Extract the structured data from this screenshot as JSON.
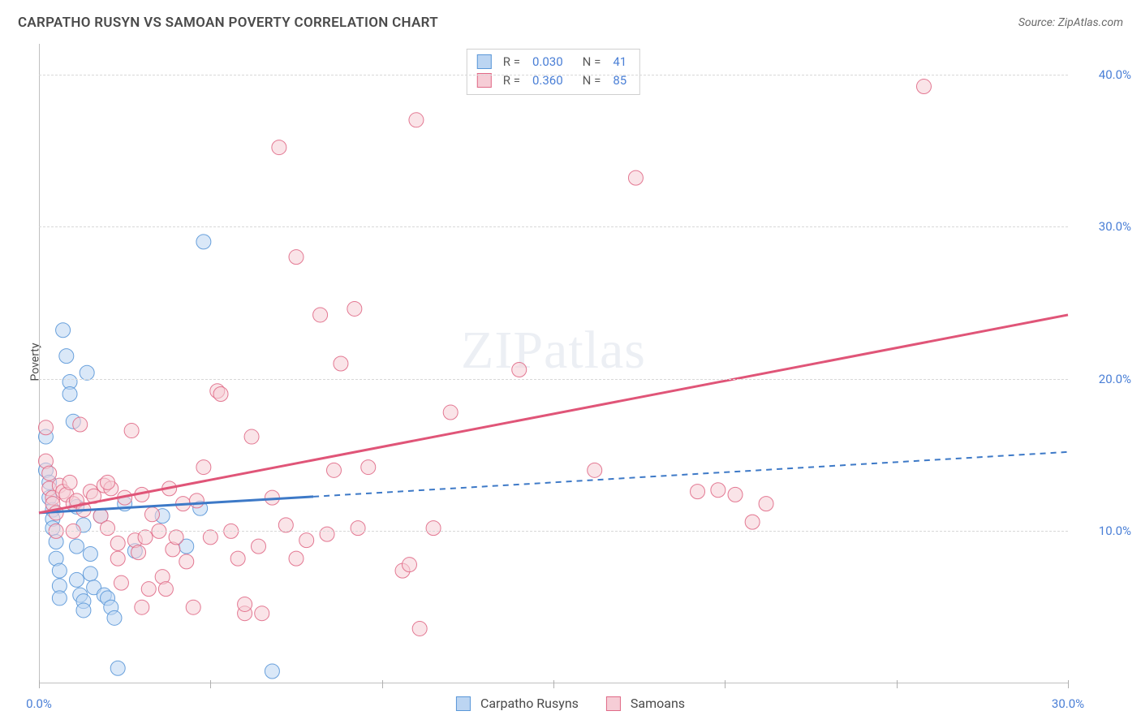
{
  "title": "CARPATHO RUSYN VS SAMOAN POVERTY CORRELATION CHART",
  "source": "Source: ZipAtlas.com",
  "watermark": "ZIPatlas",
  "y_axis_label": "Poverty",
  "chart": {
    "type": "scatter",
    "xlim": [
      0,
      30
    ],
    "ylim": [
      0,
      42
    ],
    "x_ticks": [
      0,
      5,
      10,
      15,
      20,
      25,
      30
    ],
    "x_tick_labels": {
      "0": "0.0%",
      "30": "30.0%"
    },
    "y_ticks": [
      10,
      20,
      30,
      40
    ],
    "y_tick_labels": {
      "10": "10.0%",
      "20": "20.0%",
      "30": "30.0%",
      "40": "40.0%"
    },
    "background_color": "#ffffff",
    "grid_color": "#d8d8d8",
    "axis_color": "#c0c0c0",
    "tick_label_color": "#4a7fd6",
    "marker_radius": 9,
    "marker_opacity": 0.55,
    "marker_stroke_opacity": 0.9,
    "line_width": 3,
    "series": [
      {
        "key": "carpatho",
        "label": "Carpatho Rusyns",
        "color_fill": "#bcd5f2",
        "color_stroke": "#5a97d8",
        "line_color": "#3d79c7",
        "R": "0.030",
        "N": "41",
        "trend": {
          "x1": 0,
          "y1": 11.2,
          "x2": 30,
          "y2": 15.2,
          "solid_until_x": 8
        },
        "points": [
          [
            0.2,
            16.2
          ],
          [
            0.2,
            14.0
          ],
          [
            0.3,
            13.2
          ],
          [
            0.3,
            12.2
          ],
          [
            0.4,
            11.4
          ],
          [
            0.4,
            10.8
          ],
          [
            0.4,
            10.2
          ],
          [
            0.5,
            9.3
          ],
          [
            0.5,
            8.2
          ],
          [
            0.6,
            7.4
          ],
          [
            0.6,
            6.4
          ],
          [
            0.6,
            5.6
          ],
          [
            0.7,
            23.2
          ],
          [
            0.8,
            21.5
          ],
          [
            0.9,
            19.8
          ],
          [
            0.9,
            19.0
          ],
          [
            1.0,
            17.2
          ],
          [
            1.1,
            11.6
          ],
          [
            1.1,
            9.0
          ],
          [
            1.1,
            6.8
          ],
          [
            1.2,
            5.8
          ],
          [
            1.3,
            5.4
          ],
          [
            1.3,
            4.8
          ],
          [
            1.3,
            10.4
          ],
          [
            1.4,
            20.4
          ],
          [
            1.5,
            8.5
          ],
          [
            1.5,
            7.2
          ],
          [
            1.6,
            6.3
          ],
          [
            1.8,
            11.0
          ],
          [
            1.9,
            5.8
          ],
          [
            2.0,
            5.6
          ],
          [
            2.1,
            5.0
          ],
          [
            2.2,
            4.3
          ],
          [
            2.3,
            1.0
          ],
          [
            2.5,
            11.8
          ],
          [
            3.6,
            11.0
          ],
          [
            4.3,
            9.0
          ],
          [
            4.7,
            11.5
          ],
          [
            4.8,
            29.0
          ],
          [
            6.8,
            0.8
          ],
          [
            2.8,
            8.7
          ]
        ]
      },
      {
        "key": "samoan",
        "label": "Samoans",
        "color_fill": "#f6cdd6",
        "color_stroke": "#e06a87",
        "line_color": "#e05578",
        "R": "0.360",
        "N": "85",
        "trend": {
          "x1": 0,
          "y1": 11.2,
          "x2": 30,
          "y2": 24.2,
          "solid_until_x": 30
        },
        "points": [
          [
            0.2,
            16.8
          ],
          [
            0.2,
            14.6
          ],
          [
            0.3,
            13.8
          ],
          [
            0.3,
            12.8
          ],
          [
            0.4,
            12.2
          ],
          [
            0.4,
            11.8
          ],
          [
            0.5,
            11.2
          ],
          [
            0.6,
            13.0
          ],
          [
            0.7,
            12.6
          ],
          [
            0.8,
            12.4
          ],
          [
            0.9,
            13.2
          ],
          [
            1.0,
            11.8
          ],
          [
            1.1,
            12.0
          ],
          [
            1.2,
            17.0
          ],
          [
            1.3,
            11.4
          ],
          [
            1.5,
            12.6
          ],
          [
            1.6,
            12.3
          ],
          [
            1.8,
            11.0
          ],
          [
            1.9,
            13.0
          ],
          [
            2.0,
            10.2
          ],
          [
            2.1,
            12.8
          ],
          [
            2.3,
            9.2
          ],
          [
            2.3,
            8.2
          ],
          [
            2.4,
            6.6
          ],
          [
            2.5,
            12.2
          ],
          [
            2.7,
            16.6
          ],
          [
            2.8,
            9.4
          ],
          [
            2.9,
            8.6
          ],
          [
            3.0,
            12.4
          ],
          [
            3.1,
            9.6
          ],
          [
            3.2,
            6.2
          ],
          [
            3.3,
            11.1
          ],
          [
            3.5,
            10.0
          ],
          [
            3.6,
            7.0
          ],
          [
            3.7,
            6.2
          ],
          [
            3.8,
            12.8
          ],
          [
            3.9,
            8.8
          ],
          [
            4.0,
            9.6
          ],
          [
            4.2,
            11.8
          ],
          [
            4.3,
            8.0
          ],
          [
            4.6,
            12.0
          ],
          [
            4.8,
            14.2
          ],
          [
            5.0,
            9.6
          ],
          [
            5.2,
            19.2
          ],
          [
            5.3,
            19.0
          ],
          [
            5.6,
            10.0
          ],
          [
            5.8,
            8.2
          ],
          [
            6.0,
            4.6
          ],
          [
            6.2,
            16.2
          ],
          [
            6.4,
            9.0
          ],
          [
            6.5,
            4.6
          ],
          [
            6.8,
            12.2
          ],
          [
            7.0,
            35.2
          ],
          [
            7.2,
            10.4
          ],
          [
            7.5,
            8.2
          ],
          [
            7.5,
            28.0
          ],
          [
            7.8,
            9.4
          ],
          [
            8.2,
            24.2
          ],
          [
            8.4,
            9.8
          ],
          [
            8.6,
            14.0
          ],
          [
            8.8,
            21.0
          ],
          [
            9.2,
            24.6
          ],
          [
            9.3,
            10.2
          ],
          [
            9.6,
            14.2
          ],
          [
            10.6,
            7.4
          ],
          [
            10.8,
            7.8
          ],
          [
            11.0,
            37.0
          ],
          [
            11.1,
            3.6
          ],
          [
            11.5,
            10.2
          ],
          [
            12.0,
            17.8
          ],
          [
            14.0,
            20.6
          ],
          [
            16.2,
            14.0
          ],
          [
            17.4,
            33.2
          ],
          [
            19.2,
            12.6
          ],
          [
            19.8,
            12.7
          ],
          [
            20.3,
            12.4
          ],
          [
            20.8,
            10.6
          ],
          [
            21.2,
            11.8
          ],
          [
            25.8,
            39.2
          ],
          [
            6.0,
            5.2
          ],
          [
            4.5,
            5.0
          ],
          [
            1.0,
            10.0
          ],
          [
            0.5,
            10.0
          ],
          [
            3.0,
            5.0
          ],
          [
            2.0,
            13.2
          ]
        ]
      }
    ]
  },
  "legend_top": [
    {
      "series": "carpatho",
      "R_label": "R =",
      "R": "0.030",
      "N_label": "N =",
      "N": "41"
    },
    {
      "series": "samoan",
      "R_label": "R =",
      "R": "0.360",
      "N_label": "N =",
      "N": "85"
    }
  ],
  "legend_bottom": [
    {
      "series": "carpatho",
      "label": "Carpatho Rusyns"
    },
    {
      "series": "samoan",
      "label": "Samoans"
    }
  ]
}
